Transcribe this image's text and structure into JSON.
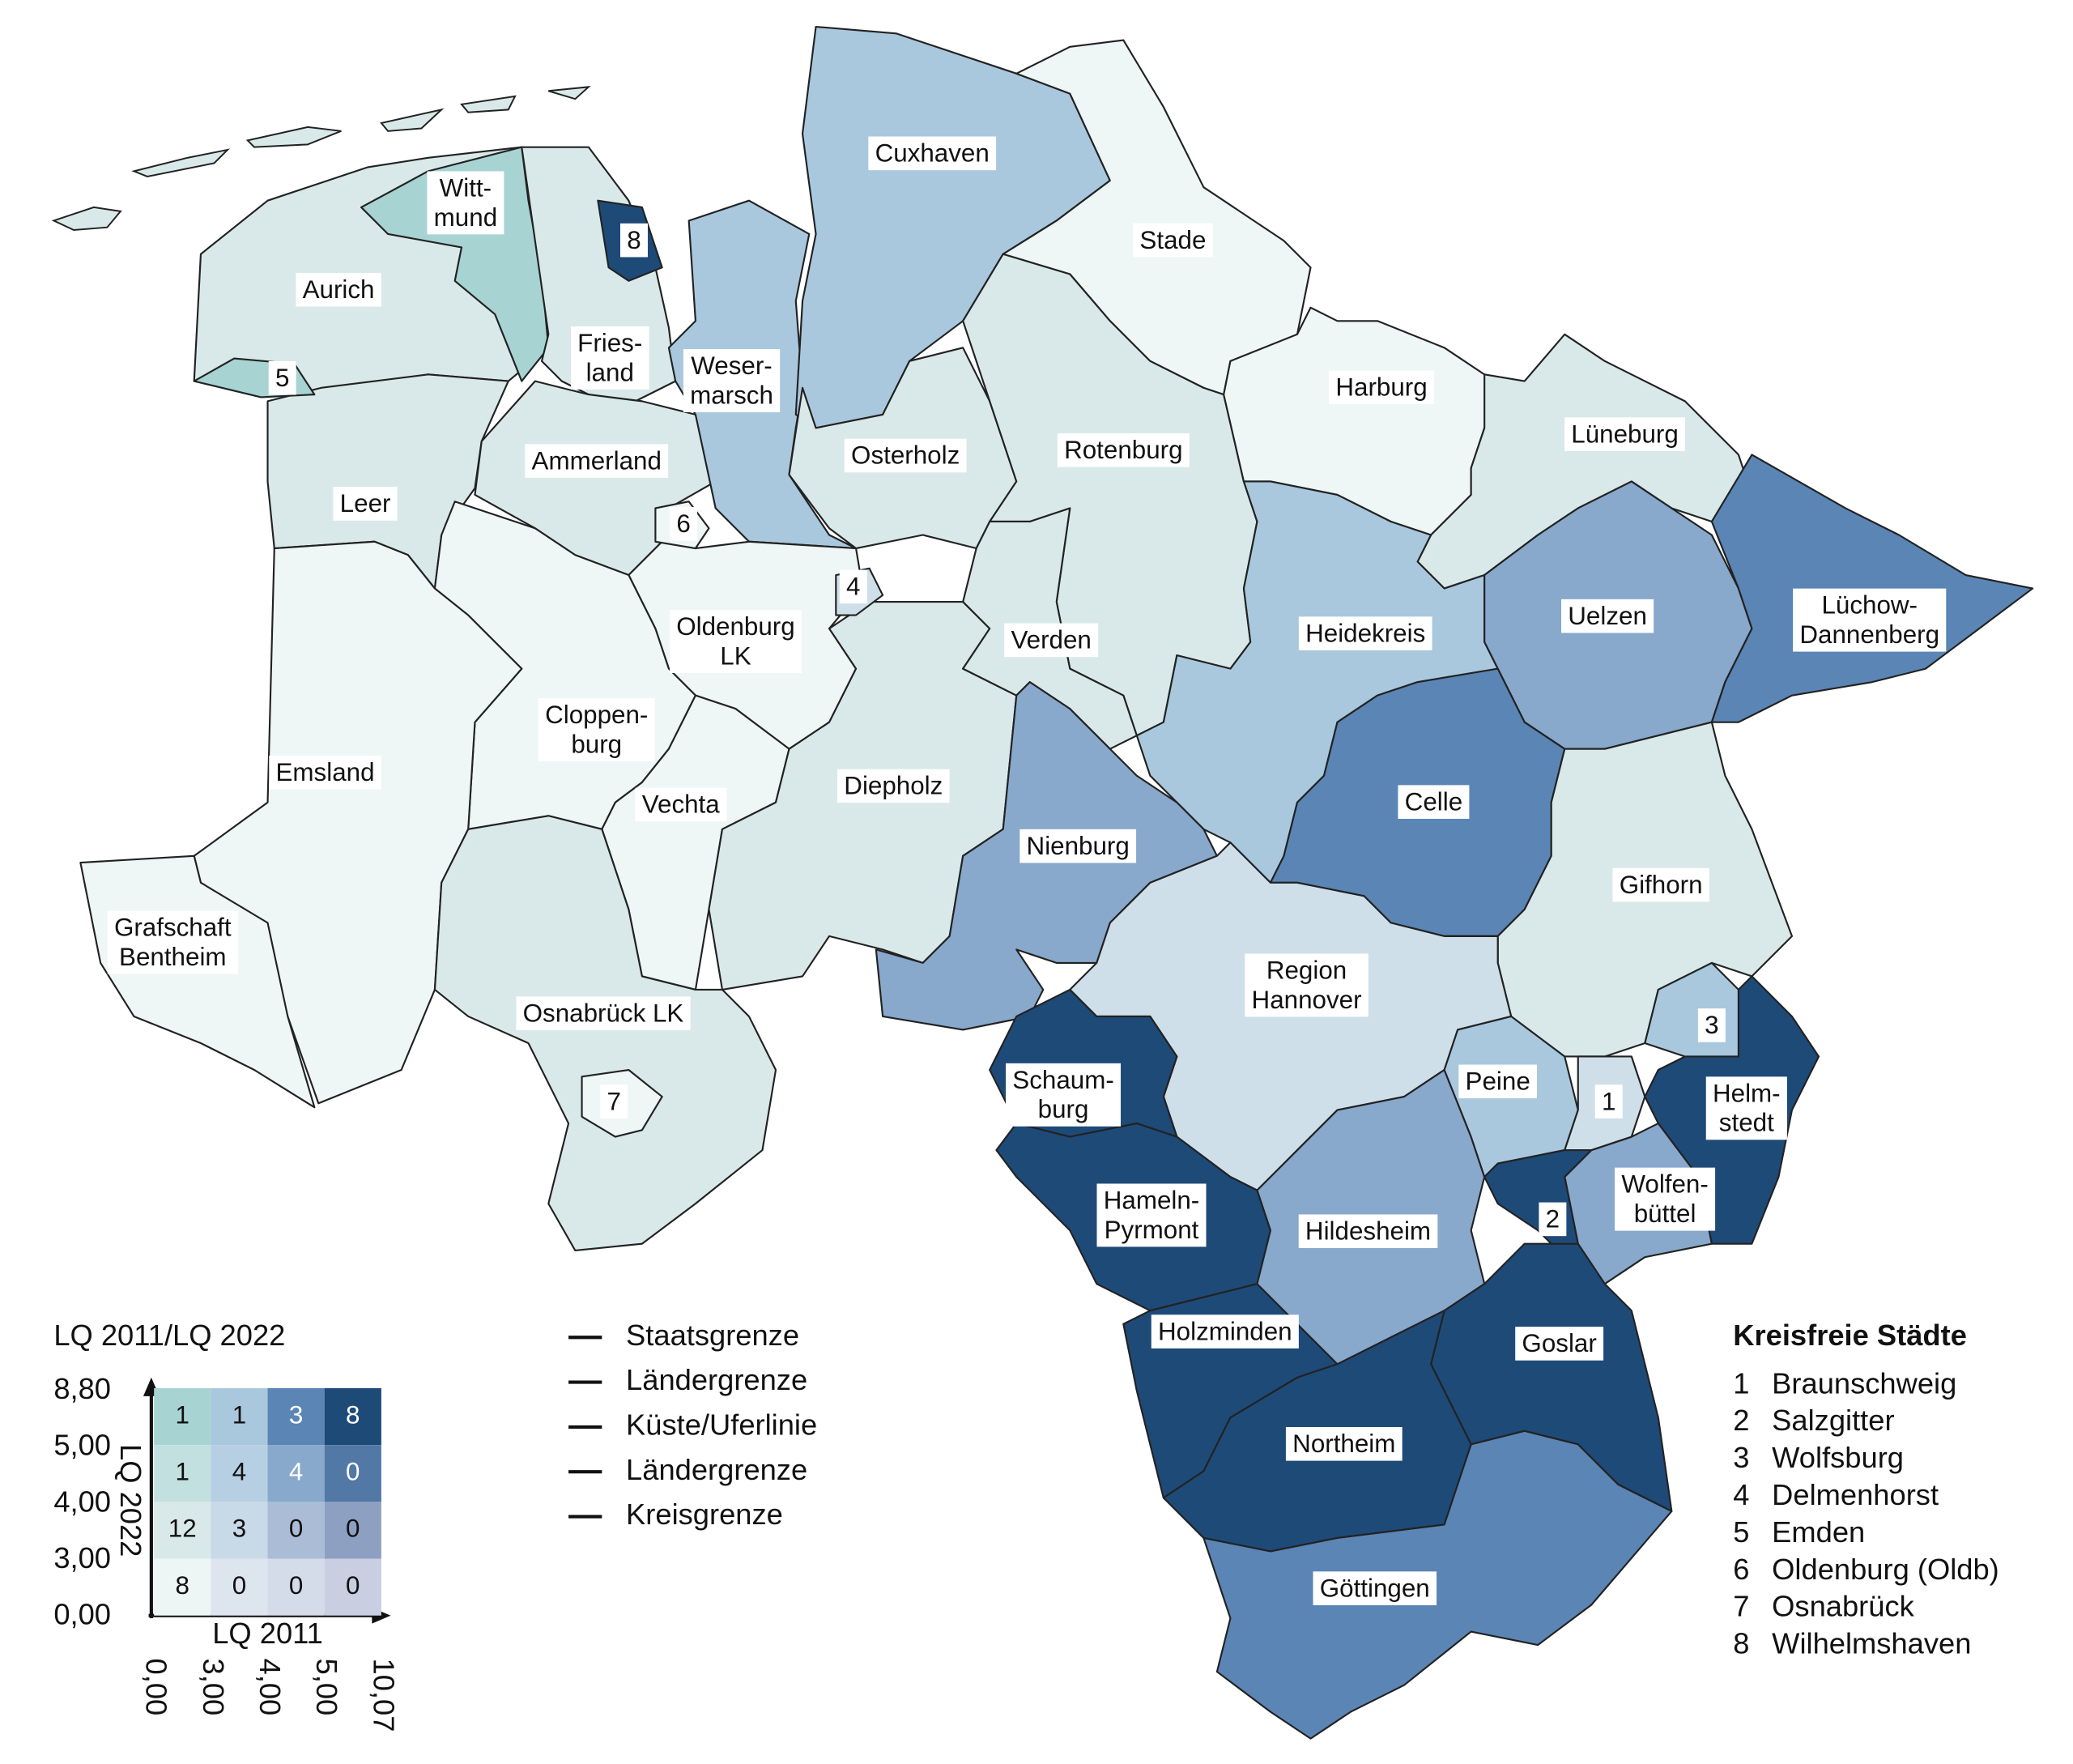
{
  "map": {
    "districts": [
      {
        "lines": [
          "Aurich"
        ],
        "color": "#d9e9e9"
      },
      {
        "lines": [
          "Witt-",
          "mund"
        ],
        "color": "#a8d3d3"
      },
      {
        "lines": [
          "Fries-",
          "land"
        ],
        "color": "#d9e9e9"
      },
      {
        "lines": [
          "Leer"
        ],
        "color": "#d9e9e9"
      },
      {
        "lines": [
          "Ammerland"
        ],
        "color": "#d9e9e9"
      },
      {
        "lines": [
          "Weser-",
          "marsch"
        ],
        "color": "#a9c8de"
      },
      {
        "lines": [
          "Cuxhaven"
        ],
        "color": "#a9c8de"
      },
      {
        "lines": [
          "Stade"
        ],
        "color": "#eff6f6"
      },
      {
        "lines": [
          "Osterholz"
        ],
        "color": "#d9e9e9"
      },
      {
        "lines": [
          "Oldenburg",
          "LK"
        ],
        "color": "#eff6f6"
      },
      {
        "lines": [
          "Cloppen-",
          "burg"
        ],
        "color": "#eff6f6"
      },
      {
        "lines": [
          "Vechta"
        ],
        "color": "#eff6f6"
      },
      {
        "lines": [
          "Emsland"
        ],
        "color": "#eff6f6"
      },
      {
        "lines": [
          "Grafschaft",
          "Bentheim"
        ],
        "color": "#eff6f6"
      },
      {
        "lines": [
          "Diepholz"
        ],
        "color": "#d9e9e9"
      },
      {
        "lines": [
          "Osnabrück LK"
        ],
        "color": "#d9e9e9"
      },
      {
        "lines": [
          "Rotenburg"
        ],
        "color": "#d9e9e9"
      },
      {
        "lines": [
          "Verden"
        ],
        "color": "#d9e9e9"
      },
      {
        "lines": [
          "Harburg"
        ],
        "color": "#eff6f6"
      },
      {
        "lines": [
          "Lüneburg"
        ],
        "color": "#d9e9e9"
      },
      {
        "lines": [
          "Heidekreis"
        ],
        "color": "#a9c8de"
      },
      {
        "lines": [
          "Uelzen"
        ],
        "color": "#88a8cc"
      },
      {
        "lines": [
          "Lüchow-",
          "Dannenberg"
        ],
        "color": "#5a85b5"
      },
      {
        "lines": [
          "Celle"
        ],
        "color": "#5a85b5"
      },
      {
        "lines": [
          "Gifhorn"
        ],
        "color": "#d9e9e9"
      },
      {
        "lines": [
          "Nienburg"
        ],
        "color": "#88a8cc"
      },
      {
        "lines": [
          "Region",
          "Hannover"
        ],
        "color": "#cfdfea"
      },
      {
        "lines": [
          "Schaum-",
          "burg"
        ],
        "color": "#1e4a78"
      },
      {
        "lines": [
          "Hameln-",
          "Pyrmont"
        ],
        "color": "#1e4a78"
      },
      {
        "lines": [
          "Holzminden"
        ],
        "color": "#1e4a78"
      },
      {
        "lines": [
          "Hildesheim"
        ],
        "color": "#88a8cc"
      },
      {
        "lines": [
          "Peine"
        ],
        "color": "#a9c8de"
      },
      {
        "lines": [
          "Helm-",
          "stedt"
        ],
        "color": "#1e4a78"
      },
      {
        "lines": [
          "Wolfen-",
          "büttel"
        ],
        "color": "#88a8cc"
      },
      {
        "lines": [
          "Goslar"
        ],
        "color": "#1e4a78"
      },
      {
        "lines": [
          "Northeim"
        ],
        "color": "#1e4a78"
      },
      {
        "lines": [
          "Göttingen"
        ],
        "color": "#5a85b5"
      },
      {
        "lines": [
          "1"
        ],
        "color": "#cfdfea"
      },
      {
        "lines": [
          "2"
        ],
        "color": "#1e4a78"
      },
      {
        "lines": [
          "3"
        ],
        "color": "#a9c8de"
      },
      {
        "lines": [
          "4"
        ],
        "color": "#cfdfea"
      },
      {
        "lines": [
          "5"
        ],
        "color": "#a8d3d3"
      },
      {
        "lines": [
          "6"
        ],
        "color": "#eff6f6"
      },
      {
        "lines": [
          "7"
        ],
        "color": "#eff6f6"
      },
      {
        "lines": [
          "8"
        ],
        "color": "#1e4a78"
      }
    ]
  },
  "legend": {
    "title": "LQ 2011/LQ 2022",
    "y_axis_label": "LQ 2022",
    "x_axis_label": "LQ 2011",
    "y_ticks": [
      "8,80",
      "5,00",
      "4,00",
      "3,00",
      "0,00"
    ],
    "x_ticks": [
      "0,00",
      "3,00",
      "4,00",
      "5,00",
      "10,07"
    ],
    "matrix": [
      [
        {
          "count": 1,
          "color": "#a8d3d3"
        },
        {
          "count": 1,
          "color": "#a9c8de"
        },
        {
          "count": 3,
          "color": "#5a85b5"
        },
        {
          "count": 8,
          "color": "#1e4a78"
        }
      ],
      [
        {
          "count": 1,
          "color": "#c3e0e0"
        },
        {
          "count": 4,
          "color": "#b6cfe3"
        },
        {
          "count": 4,
          "color": "#88a8cc"
        },
        {
          "count": 0,
          "color": "#5278a5"
        }
      ],
      [
        {
          "count": 12,
          "color": "#d9e9e9"
        },
        {
          "count": 3,
          "color": "#c8d9e7"
        },
        {
          "count": 0,
          "color": "#aabcd6"
        },
        {
          "count": 0,
          "color": "#8ea0c2"
        }
      ],
      [
        {
          "count": 8,
          "color": "#eef5f5"
        },
        {
          "count": 0,
          "color": "#dde6ee"
        },
        {
          "count": 0,
          "color": "#d4dbe9"
        },
        {
          "count": 0,
          "color": "#c9cee1"
        }
      ]
    ]
  },
  "line_legend": [
    "Staatsgrenze",
    "Ländergrenze",
    "Küste/Uferlinie",
    "Ländergrenze",
    "Kreisgrenze"
  ],
  "cities_legend": {
    "title": "Kreisfreie Städte",
    "items": [
      {
        "number": "1",
        "name": "Braunschweig"
      },
      {
        "number": "2",
        "name": "Salzgitter"
      },
      {
        "number": "3",
        "name": "Wolfsburg"
      },
      {
        "number": "4",
        "name": "Delmenhorst"
      },
      {
        "number": "5",
        "name": "Emden"
      },
      {
        "number": "6",
        "name": "Oldenburg (Oldb)"
      },
      {
        "number": "7",
        "name": "Osnabrück"
      },
      {
        "number": "8",
        "name": "Wilhelmshaven"
      }
    ]
  }
}
